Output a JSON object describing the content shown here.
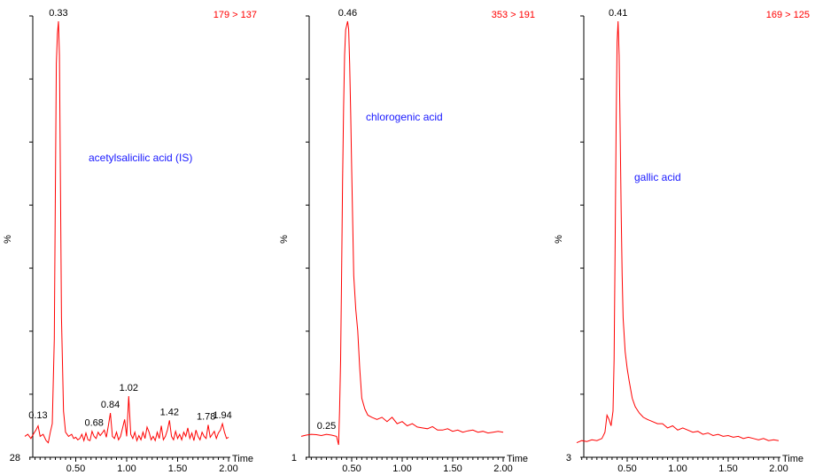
{
  "chart_data": [
    {
      "type": "line",
      "transition": "179 > 137",
      "compound": "acetylsalicilic acid (IS)",
      "ylabel": "%",
      "xlabel": "Time",
      "ymin_label": "28",
      "xlim": [
        0.0,
        2.0
      ],
      "ylim": [
        0,
        100
      ],
      "xticks": [
        0.5,
        1.0,
        1.5,
        2.0
      ],
      "xtick_labels": [
        "0.50",
        "1.00",
        "1.50",
        "2.00"
      ],
      "peaks": [
        {
          "x": 0.13,
          "y": 5.0,
          "label": "0.13"
        },
        {
          "x": 0.33,
          "y": 100,
          "label": "0.33"
        },
        {
          "x": 0.68,
          "y": 3.2,
          "label": "0.68"
        },
        {
          "x": 0.84,
          "y": 7.5,
          "label": "0.84"
        },
        {
          "x": 1.02,
          "y": 11.5,
          "label": "1.02"
        },
        {
          "x": 1.42,
          "y": 5.8,
          "label": "1.42"
        },
        {
          "x": 1.78,
          "y": 4.7,
          "label": "1.78"
        },
        {
          "x": 1.94,
          "y": 5.0,
          "label": "1.94"
        }
      ],
      "series": [
        {
          "x": [
            0.0,
            0.03,
            0.06,
            0.09,
            0.11,
            0.13,
            0.15,
            0.18,
            0.21,
            0.23,
            0.25,
            0.27,
            0.29,
            0.3,
            0.31,
            0.32,
            0.33,
            0.34,
            0.35,
            0.36,
            0.38,
            0.4,
            0.43,
            0.46,
            0.48,
            0.5,
            0.52,
            0.54,
            0.56,
            0.58,
            0.6,
            0.62,
            0.64,
            0.66,
            0.68,
            0.7,
            0.72,
            0.74,
            0.76,
            0.78,
            0.8,
            0.82,
            0.84,
            0.86,
            0.88,
            0.9,
            0.92,
            0.94,
            0.96,
            0.98,
            1.0,
            1.02,
            1.04,
            1.06,
            1.08,
            1.1,
            1.12,
            1.14,
            1.16,
            1.18,
            1.2,
            1.22,
            1.24,
            1.26,
            1.28,
            1.3,
            1.32,
            1.34,
            1.36,
            1.38,
            1.4,
            1.42,
            1.44,
            1.46,
            1.48,
            1.5,
            1.52,
            1.54,
            1.56,
            1.58,
            1.6,
            1.62,
            1.64,
            1.66,
            1.68,
            1.7,
            1.72,
            1.74,
            1.76,
            1.78,
            1.8,
            1.82,
            1.84,
            1.86,
            1.88,
            1.9,
            1.92,
            1.94,
            1.96,
            1.98,
            2.0
          ],
          "y": [
            2.0,
            2.5,
            1.5,
            2.8,
            3.5,
            4.5,
            2.0,
            2.5,
            1.0,
            0.5,
            3.0,
            5.0,
            25.0,
            60.0,
            90.0,
            97.0,
            100.0,
            92.0,
            60.0,
            30.0,
            8.0,
            3.0,
            2.0,
            2.5,
            1.5,
            1.8,
            1.2,
            1.5,
            2.5,
            1.0,
            2.8,
            1.2,
            1.0,
            3.2,
            2.0,
            1.5,
            3.0,
            2.2,
            2.8,
            3.5,
            1.8,
            4.5,
            7.5,
            2.0,
            1.5,
            3.0,
            1.2,
            2.0,
            4.0,
            6.0,
            2.0,
            11.5,
            2.5,
            1.5,
            3.0,
            1.0,
            2.2,
            1.2,
            3.0,
            1.5,
            4.2,
            3.0,
            1.2,
            2.0,
            1.0,
            3.0,
            1.5,
            4.5,
            1.2,
            2.0,
            3.5,
            5.8,
            2.0,
            1.2,
            3.2,
            1.5,
            2.5,
            1.2,
            3.0,
            2.0,
            4.0,
            1.5,
            2.8,
            1.0,
            3.5,
            2.0,
            1.2,
            3.0,
            2.0,
            1.5,
            4.7,
            1.8,
            2.5,
            3.2,
            1.5,
            2.8,
            3.5,
            5.0,
            3.0,
            1.5,
            1.8
          ]
        }
      ]
    },
    {
      "type": "line",
      "transition": "353 > 191",
      "compound": "chlorogenic acid",
      "ylabel": "%",
      "xlabel": "Time",
      "ymin_label": "1",
      "xlim": [
        0.0,
        2.0
      ],
      "ylim": [
        0,
        100
      ],
      "xticks": [
        0.5,
        1.0,
        1.5,
        2.0
      ],
      "xtick_labels": [
        "0.50",
        "1.00",
        "1.50",
        "2.00"
      ],
      "peaks": [
        {
          "x": 0.25,
          "y": 2.5,
          "label": "0.25"
        },
        {
          "x": 0.46,
          "y": 100,
          "label": "0.46"
        }
      ],
      "series": [
        {
          "x": [
            0.0,
            0.05,
            0.1,
            0.15,
            0.2,
            0.25,
            0.3,
            0.35,
            0.37,
            0.38,
            0.39,
            0.4,
            0.41,
            0.42,
            0.43,
            0.44,
            0.45,
            0.46,
            0.47,
            0.48,
            0.49,
            0.5,
            0.52,
            0.54,
            0.56,
            0.58,
            0.6,
            0.63,
            0.66,
            0.7,
            0.75,
            0.8,
            0.85,
            0.9,
            0.95,
            1.0,
            1.05,
            1.1,
            1.15,
            1.2,
            1.25,
            1.3,
            1.35,
            1.4,
            1.45,
            1.5,
            1.55,
            1.6,
            1.65,
            1.7,
            1.75,
            1.8,
            1.85,
            1.9,
            1.95,
            2.0
          ],
          "y": [
            2.0,
            2.3,
            2.5,
            2.4,
            2.2,
            2.5,
            2.3,
            2.0,
            0.0,
            8.0,
            20.0,
            40.0,
            62.0,
            80.0,
            92.0,
            98.0,
            99.0,
            100.0,
            98.0,
            90.0,
            78.0,
            65.0,
            40.0,
            32.0,
            27.0,
            18.0,
            11.0,
            8.5,
            7.0,
            6.5,
            6.0,
            6.5,
            5.5,
            6.5,
            5.0,
            5.5,
            4.5,
            5.0,
            4.2,
            4.0,
            3.8,
            4.3,
            3.5,
            3.5,
            3.8,
            3.2,
            3.5,
            3.0,
            3.3,
            3.5,
            3.0,
            3.2,
            2.8,
            3.0,
            3.2,
            3.0
          ]
        }
      ]
    },
    {
      "type": "line",
      "transition": "169 > 125",
      "compound": "gallic acid",
      "ylabel": "%",
      "xlabel": "Time",
      "ymin_label": "3",
      "xlim": [
        0.0,
        2.0
      ],
      "ylim": [
        0,
        100
      ],
      "xticks": [
        0.5,
        1.0,
        1.5,
        2.0
      ],
      "xtick_labels": [
        "0.50",
        "1.00",
        "1.50",
        "2.00"
      ],
      "peaks": [
        {
          "x": 0.41,
          "y": 100,
          "label": "0.41"
        }
      ],
      "series": [
        {
          "x": [
            0.0,
            0.05,
            0.1,
            0.15,
            0.2,
            0.25,
            0.28,
            0.3,
            0.32,
            0.34,
            0.36,
            0.37,
            0.38,
            0.39,
            0.4,
            0.41,
            0.42,
            0.43,
            0.44,
            0.45,
            0.46,
            0.48,
            0.5,
            0.52,
            0.55,
            0.58,
            0.62,
            0.66,
            0.7,
            0.75,
            0.8,
            0.85,
            0.9,
            0.95,
            1.0,
            1.05,
            1.1,
            1.15,
            1.2,
            1.25,
            1.3,
            1.35,
            1.4,
            1.45,
            1.5,
            1.55,
            1.6,
            1.65,
            1.7,
            1.75,
            1.8,
            1.85,
            1.9,
            1.95,
            2.0
          ],
          "y": [
            0.5,
            1.0,
            0.8,
            1.2,
            1.0,
            1.5,
            3.0,
            7.0,
            6.0,
            4.5,
            8.0,
            20.0,
            45.0,
            75.0,
            95.0,
            100.0,
            92.0,
            75.0,
            55.0,
            40.0,
            30.0,
            22.0,
            18.0,
            15.0,
            11.0,
            9.0,
            7.5,
            6.5,
            6.0,
            5.5,
            5.0,
            5.0,
            4.0,
            4.5,
            3.5,
            4.0,
            3.5,
            3.0,
            3.2,
            2.5,
            2.8,
            2.2,
            2.5,
            2.0,
            2.2,
            1.8,
            2.0,
            1.5,
            1.8,
            1.5,
            1.2,
            1.5,
            1.0,
            1.2,
            1.0
          ]
        }
      ]
    }
  ]
}
